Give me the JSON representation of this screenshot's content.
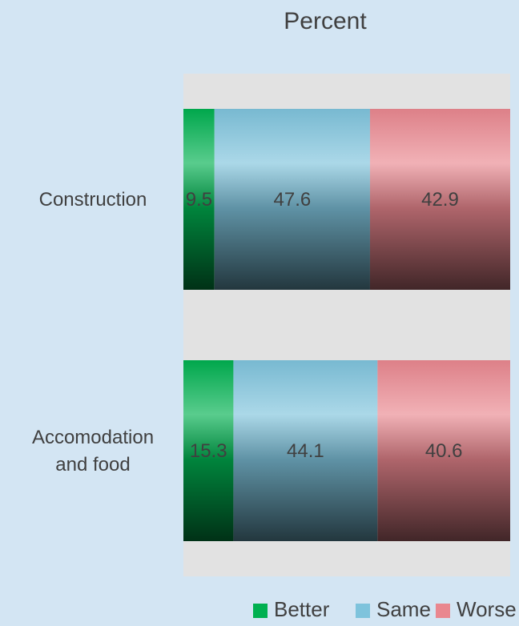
{
  "chart_data": {
    "type": "bar",
    "orientation": "horizontal",
    "stacked": true,
    "percent_stacked": true,
    "title": "Percent",
    "categories": [
      [
        "Construction"
      ],
      [
        "Accomodation",
        "and food"
      ]
    ],
    "series": [
      {
        "name": "Better",
        "values": [
          9.5,
          15.3
        ],
        "color": "#00b050"
      },
      {
        "name": "Same",
        "values": [
          47.6,
          44.1
        ],
        "color": "#7ec3dc"
      },
      {
        "name": "Worse",
        "values": [
          42.9,
          40.6
        ],
        "color": "#e9878f"
      }
    ],
    "xlim": [
      0,
      100
    ],
    "grid": false,
    "legend_position": "bottom-right",
    "plot_background": "#e2e2e2",
    "background": "#d3e5f3"
  }
}
